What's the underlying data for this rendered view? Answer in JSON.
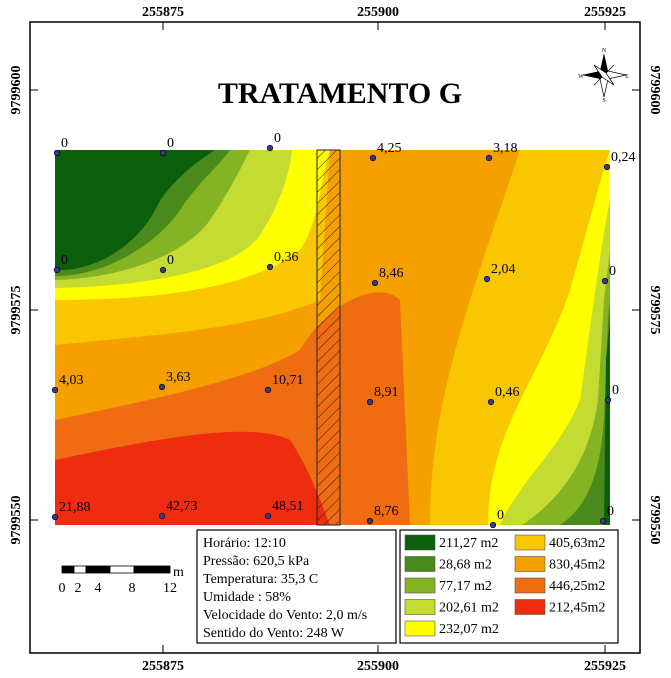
{
  "title": "TRATAMENTO G",
  "x_ticks": [
    "255875",
    "255900",
    "255925"
  ],
  "y_ticks": [
    "9799600",
    "9799575",
    "9799550"
  ],
  "compass": [
    "N",
    "S",
    "E",
    "W"
  ],
  "points": [
    "0",
    "0",
    "0",
    "4,25",
    "3,18",
    "0,24",
    "0",
    "0",
    "0,36",
    "8,46",
    "2,04",
    "0",
    "4,03",
    "3,63",
    "10,71",
    "8,91",
    "0,46",
    "0",
    "21,88",
    "42,73",
    "48,51",
    "8,76",
    "0",
    "0"
  ],
  "info": [
    "Horário: 12:10",
    "Pressão: 620,5 kPa",
    "Temperatura: 35,3 C",
    "Umidade : 58%",
    "Velocidade do Vento: 2,0 m/s",
    "Sentido do Vento: 248 W"
  ],
  "legend": [
    {
      "label": "211,27 m2",
      "color": "#0b5e0b"
    },
    {
      "label": "28,68 m2",
      "color": "#4a8a1c"
    },
    {
      "label": "77,17 m2",
      "color": "#84b324"
    },
    {
      "label": "202,61 m2",
      "color": "#c4db32"
    },
    {
      "label": "232,07 m2",
      "color": "#ffff00"
    },
    {
      "label": "405,63m2",
      "color": "#f9c602"
    },
    {
      "label": "830,45m2",
      "color": "#f5a000"
    },
    {
      "label": "446,25m2",
      "color": "#f06c12"
    },
    {
      "label": "212,45m2",
      "color": "#ee2c10"
    }
  ],
  "scale": {
    "labels": [
      "0",
      "2",
      "4",
      "8",
      "12"
    ],
    "unit": "m"
  }
}
